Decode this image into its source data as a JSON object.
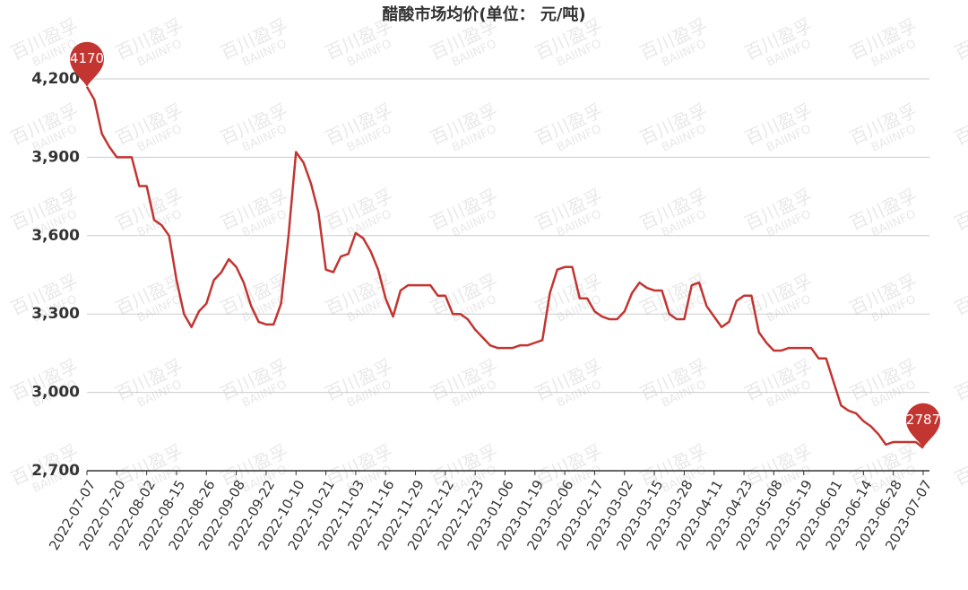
{
  "chart_data": {
    "type": "line",
    "title": "醋酸市场均价(单位：  元/吨)",
    "watermark": [
      "百川盈孚",
      "BAIINFO"
    ],
    "categories": [
      "2022-07-07",
      null,
      null,
      null,
      "2022-07-20",
      null,
      null,
      null,
      "2022-08-02",
      null,
      null,
      null,
      "2022-08-15",
      null,
      null,
      null,
      "2022-08-26",
      null,
      null,
      null,
      "2022-09-08",
      null,
      null,
      null,
      "2022-09-22",
      null,
      null,
      null,
      "2022-10-10",
      null,
      null,
      null,
      "2022-10-21",
      null,
      null,
      null,
      "2022-11-03",
      null,
      null,
      null,
      "2022-11-16",
      null,
      null,
      null,
      "2022-11-29",
      null,
      null,
      null,
      "2022-12-12",
      null,
      null,
      null,
      "2022-12-23",
      null,
      null,
      null,
      "2023-01-06",
      null,
      null,
      null,
      "2023-01-19",
      null,
      null,
      null,
      "2023-02-06",
      null,
      null,
      null,
      "2023-02-17",
      null,
      null,
      null,
      "2023-03-02",
      null,
      null,
      null,
      "2023-03-15",
      null,
      null,
      null,
      "2023-03-28",
      null,
      null,
      null,
      "2023-04-11",
      null,
      null,
      null,
      "2023-04-23",
      null,
      null,
      null,
      "2023-05-08",
      null,
      null,
      null,
      "2023-05-19",
      null,
      null,
      null,
      "2023-06-01",
      null,
      null,
      null,
      "2023-06-14",
      null,
      null,
      null,
      "2023-06-28",
      null,
      null,
      null,
      "2023-07-07"
    ],
    "series": [
      {
        "color": "#c23531",
        "values": [
          4170,
          4120,
          3990,
          3940,
          3900,
          3900,
          3900,
          3790,
          3790,
          3660,
          3640,
          3600,
          3430,
          3300,
          3250,
          3310,
          3340,
          3430,
          3460,
          3510,
          3480,
          3420,
          3330,
          3270,
          3260,
          3260,
          3340,
          3600,
          3920,
          3880,
          3800,
          3690,
          3470,
          3460,
          3520,
          3530,
          3610,
          3590,
          3540,
          3470,
          3360,
          3290,
          3390,
          3410,
          3410,
          3410,
          3410,
          3370,
          3370,
          3300,
          3300,
          3280,
          3240,
          3210,
          3180,
          3170,
          3170,
          3170,
          3180,
          3180,
          3190,
          3200,
          3380,
          3470,
          3480,
          3480,
          3360,
          3360,
          3310,
          3290,
          3280,
          3280,
          3310,
          3380,
          3420,
          3400,
          3390,
          3390,
          3300,
          3280,
          3280,
          3410,
          3420,
          3330,
          3290,
          3250,
          3270,
          3350,
          3370,
          3370,
          3230,
          3190,
          3160,
          3160,
          3170,
          3170,
          3170,
          3170,
          3130,
          3130,
          3040,
          2950,
          2930,
          2920,
          2890,
          2870,
          2840,
          2800,
          2810,
          2810,
          2810,
          2810,
          2787
        ]
      }
    ],
    "ylim": [
      2700,
      4200
    ],
    "yticks": [
      {
        "value": 2700,
        "label": "2,700"
      },
      {
        "value": 3000,
        "label": "3,000"
      },
      {
        "value": 3300,
        "label": "3,300"
      },
      {
        "value": 3600,
        "label": "3,600"
      },
      {
        "value": 3900,
        "label": "3,900"
      },
      {
        "value": 4200,
        "label": "4,200"
      }
    ],
    "grid": true
  }
}
